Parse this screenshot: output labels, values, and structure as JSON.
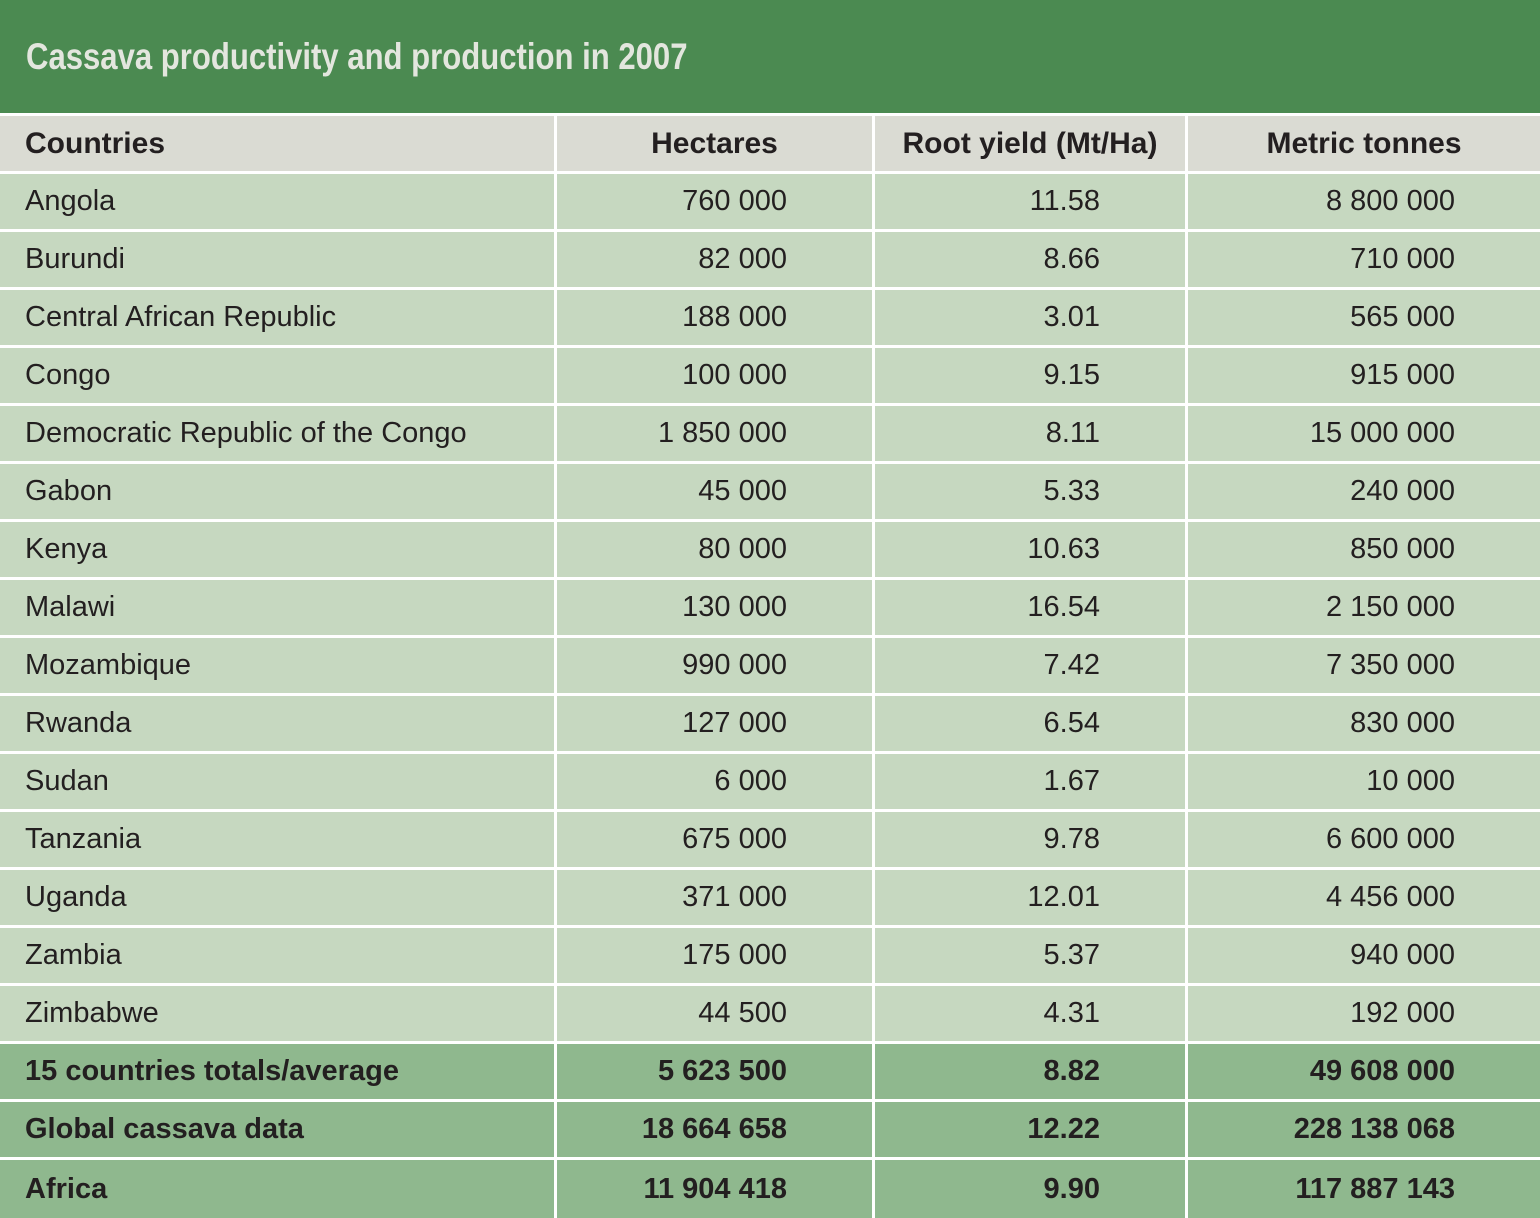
{
  "title": "Cassava productivity and production in 2007",
  "colors": {
    "title_bg": "#4b8a51",
    "header_bg": "#dadbd3",
    "row_bg": "#c6d8c0",
    "summary_bg": "#8fb88e",
    "title_text": "#e3e6de",
    "body_text": "#231f20"
  },
  "chart_data": {
    "type": "table",
    "title": "Cassava productivity and production in 2007",
    "columns": [
      "Countries",
      "Hectares",
      "Root yield (Mt/Ha)",
      "Metric tonnes"
    ],
    "rows": [
      [
        "Angola",
        "760 000",
        "11.58",
        "8 800 000"
      ],
      [
        "Burundi",
        "82 000",
        "8.66",
        "710 000"
      ],
      [
        "Central African Republic",
        "188 000",
        "3.01",
        "565 000"
      ],
      [
        "Congo",
        "100 000",
        "9.15",
        "915 000"
      ],
      [
        "Democratic Republic of the Congo",
        "1 850 000",
        "8.11",
        "15 000 000"
      ],
      [
        "Gabon",
        "45 000",
        "5.33",
        "240 000"
      ],
      [
        "Kenya",
        "80 000",
        "10.63",
        "850 000"
      ],
      [
        "Malawi",
        "130 000",
        "16.54",
        "2 150 000"
      ],
      [
        "Mozambique",
        "990 000",
        "7.42",
        "7 350 000"
      ],
      [
        "Rwanda",
        "127 000",
        "6.54",
        "830 000"
      ],
      [
        "Sudan",
        "6 000",
        "1.67",
        "10 000"
      ],
      [
        "Tanzania",
        "675 000",
        "9.78",
        "6 600 000"
      ],
      [
        "Uganda",
        "371 000",
        "12.01",
        "4 456 000"
      ],
      [
        "Zambia",
        "175 000",
        "5.37",
        "940 000"
      ],
      [
        "Zimbabwe",
        "44 500",
        "4.31",
        "192 000"
      ]
    ],
    "summary_rows": [
      [
        "15 countries totals/average",
        "5 623 500",
        "8.82",
        "49 608 000"
      ],
      [
        "Global cassava data",
        "18 664 658",
        "12.22",
        "228 138 068"
      ],
      [
        "Africa",
        "11 904 418",
        "9.90",
        "117 887 143"
      ]
    ]
  }
}
